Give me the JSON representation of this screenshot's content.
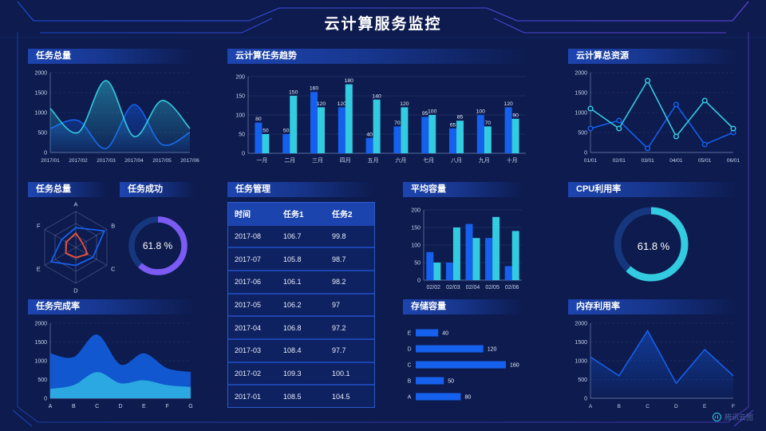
{
  "header": {
    "title": "云计算服务监控"
  },
  "footer": {
    "logo_text": "腾讯云图"
  },
  "colors": {
    "blue": "#1560EC",
    "cyan": "#33CBE0",
    "purple": "#7C5BF5",
    "red": "#EF4F38",
    "track": "#16377E",
    "deep_area": "#1157D0",
    "light_area": "#2BA7E2",
    "axis_text": "#C9D4F2"
  },
  "panels": {
    "tasks_total": {
      "title": "任务总量"
    },
    "task_trend": {
      "title": "云计算任务趋势"
    },
    "total_resources": {
      "title": "云计算总资源"
    },
    "task_radar": {
      "title": "任务总量"
    },
    "task_success": {
      "title": "任务成功",
      "value": "61.8 %"
    },
    "task_manage": {
      "title": "任务管理"
    },
    "avg_capacity": {
      "title": "平均容量"
    },
    "cpu": {
      "title": "CPU利用率",
      "value": "61.8 %"
    },
    "completion": {
      "title": "任务完成率"
    },
    "storage": {
      "title": "存储容量"
    },
    "memory": {
      "title": "内存利用率"
    }
  },
  "table": {
    "columns": [
      "时间",
      "任务1",
      "任务2"
    ],
    "rows": [
      [
        "2017-08",
        "106.7",
        "99.8"
      ],
      [
        "2017-07",
        "105.8",
        "98.7"
      ],
      [
        "2017-06",
        "106.1",
        "98.2"
      ],
      [
        "2017-05",
        "106.2",
        "97"
      ],
      [
        "2017-04",
        "106.8",
        "97.2"
      ],
      [
        "2017-03",
        "108.4",
        "97.7"
      ],
      [
        "2017-02",
        "109.3",
        "100.1"
      ],
      [
        "2017-01",
        "108.5",
        "104.5"
      ]
    ]
  },
  "chart_data": [
    {
      "id": "tasks_total",
      "type": "area",
      "title": "任务总量",
      "x": [
        "2017/01",
        "2017/02",
        "2017/03",
        "2017/04",
        "2017/05",
        "2017/06"
      ],
      "ylim": [
        0,
        2000
      ],
      "yticks": [
        0,
        500,
        1000,
        1500,
        2000
      ],
      "grid": "dashed",
      "smooth": true,
      "series": [
        {
          "name": "cyan-series",
          "color": "cyan",
          "fill": true,
          "values": [
            1100,
            500,
            1800,
            400,
            1300,
            600
          ]
        },
        {
          "name": "blue-series",
          "color": "blue",
          "fill": true,
          "values": [
            600,
            800,
            100,
            1200,
            200,
            500
          ]
        }
      ]
    },
    {
      "id": "task_trend",
      "type": "bar",
      "title": "云计算任务趋势",
      "categories": [
        "一月",
        "二月",
        "三月",
        "四月",
        "五月",
        "六月",
        "七月",
        "八月",
        "九月",
        "十月"
      ],
      "ylim": [
        0,
        200
      ],
      "yticks": [
        0,
        50,
        100,
        150,
        200
      ],
      "value_labels": true,
      "series": [
        {
          "name": "blue-series",
          "color": "blue",
          "values": [
            80,
            50,
            160,
            120,
            40,
            70,
            95,
            65,
            100,
            120
          ]
        },
        {
          "name": "cyan-series",
          "color": "cyan",
          "values": [
            50,
            150,
            120,
            180,
            140,
            120,
            100,
            85,
            70,
            90
          ]
        }
      ]
    },
    {
      "id": "total_resources",
      "type": "line",
      "title": "云计算总资源",
      "x": [
        "01/01",
        "02/01",
        "03/01",
        "04/01",
        "05/01",
        "06/01"
      ],
      "ylim": [
        0,
        2000
      ],
      "yticks": [
        0,
        500,
        1000,
        1500,
        2000
      ],
      "grid": "dashed",
      "smooth": false,
      "markers": true,
      "series": [
        {
          "name": "cyan-series",
          "color": "cyan",
          "values": [
            1100,
            600,
            1800,
            400,
            1300,
            600
          ]
        },
        {
          "name": "blue-series",
          "color": "blue",
          "values": [
            600,
            800,
            100,
            1200,
            200,
            500
          ]
        }
      ]
    },
    {
      "id": "task_radar",
      "type": "radar",
      "title": "任务总量",
      "indicators": [
        "A",
        "B",
        "C",
        "D",
        "E",
        "F"
      ],
      "max": 100,
      "series": [
        {
          "name": "blue-polygon",
          "color": "blue",
          "values": [
            55,
            92,
            55,
            50,
            80,
            45
          ]
        },
        {
          "name": "red-polygon",
          "color": "red",
          "values": [
            40,
            22,
            38,
            28,
            32,
            30
          ]
        }
      ]
    },
    {
      "id": "task_success",
      "type": "donut",
      "title": "任务成功",
      "percent": 61.8,
      "label": "61.8 %",
      "color": "purple"
    },
    {
      "id": "avg_capacity",
      "type": "bar",
      "title": "平均容量",
      "categories": [
        "02/02",
        "02/03",
        "02/04",
        "02/05",
        "02/06"
      ],
      "ylim": [
        0,
        200
      ],
      "yticks": [
        0,
        50,
        100,
        150,
        200
      ],
      "value_labels": false,
      "series": [
        {
          "name": "blue-series",
          "color": "blue",
          "values": [
            80,
            50,
            160,
            120,
            40
          ]
        },
        {
          "name": "cyan-series",
          "color": "cyan",
          "values": [
            50,
            150,
            120,
            180,
            140
          ]
        }
      ]
    },
    {
      "id": "cpu",
      "type": "donut",
      "title": "CPU利用率",
      "percent": 61.8,
      "label": "61.8 %",
      "color": "cyan"
    },
    {
      "id": "completion",
      "type": "stacked_area",
      "title": "任务完成率",
      "x": [
        "A",
        "B",
        "C",
        "D",
        "E",
        "F",
        "G"
      ],
      "ylim": [
        0,
        2000
      ],
      "yticks": [
        0,
        500,
        1000,
        1500,
        2000
      ],
      "grid": "dashed",
      "smooth": true,
      "series": [
        {
          "name": "total-area",
          "color": "deep_area",
          "values": [
            1200,
            1100,
            1700,
            900,
            1200,
            800,
            700
          ]
        },
        {
          "name": "lower-area",
          "color": "light_area",
          "values": [
            250,
            350,
            700,
            400,
            480,
            350,
            300
          ]
        }
      ]
    },
    {
      "id": "storage",
      "type": "hbar",
      "title": "存储容量",
      "categories": [
        "E",
        "D",
        "C",
        "B",
        "A"
      ],
      "values": [
        40,
        120,
        160,
        50,
        80
      ],
      "xmax": 170,
      "color": "blue"
    },
    {
      "id": "memory",
      "type": "area",
      "title": "内存利用率",
      "x": [
        "A",
        "B",
        "C",
        "D",
        "E",
        "F"
      ],
      "ylim": [
        0,
        2000
      ],
      "yticks": [
        0,
        500,
        1000,
        1500,
        2000
      ],
      "grid": "dashed",
      "smooth": false,
      "series": [
        {
          "name": "blue-series",
          "color": "blue",
          "fill": true,
          "values": [
            1100,
            600,
            1800,
            400,
            1300,
            600
          ]
        }
      ]
    }
  ]
}
